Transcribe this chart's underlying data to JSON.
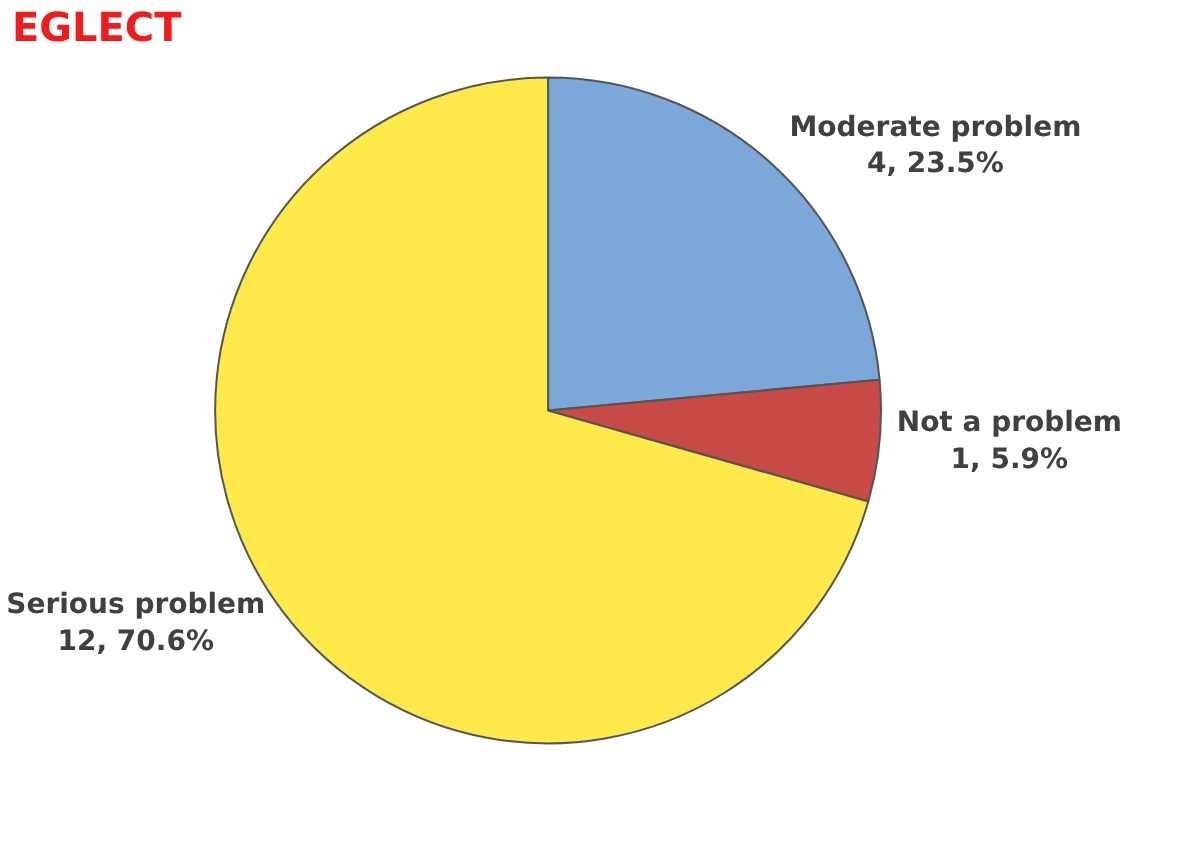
{
  "chart_data": {
    "type": "pie",
    "title": "EGLECT",
    "categories": [
      "Moderate problem",
      "Not a problem",
      "Serious problem"
    ],
    "values": [
      4,
      1,
      12
    ],
    "value_labels": [
      "4, 23.5%",
      "1, 5.9%",
      "12, 70.6%"
    ],
    "colors": [
      "#7ba7d9",
      "#c84b47",
      "#fde94a"
    ]
  }
}
